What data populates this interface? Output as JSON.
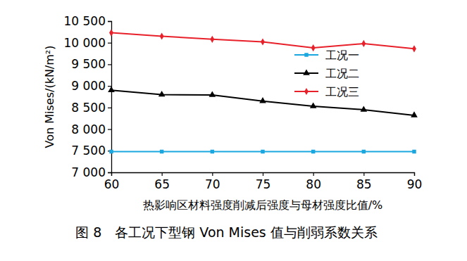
{
  "chart_data": {
    "type": "line",
    "title": "图 8　各工况下型钢 Von Mises 值与削弱系数关系",
    "x_label": "热影响区材料强度削减后强度与母材强度比值/%",
    "y_label": "Von Mises/(kN/m²)",
    "x": [
      60,
      65,
      70,
      75,
      80,
      85,
      90
    ],
    "xlim": [
      60,
      90
    ],
    "xticks": [
      60,
      65,
      70,
      75,
      80,
      85,
      90
    ],
    "ylim": [
      7000,
      10500
    ],
    "yticks": [
      {
        "value": 7000,
        "label": "7 000"
      },
      {
        "value": 7500,
        "label": "7 500"
      },
      {
        "value": 8000,
        "label": "8 000"
      },
      {
        "value": 8500,
        "label": "8 500"
      },
      {
        "value": 9000,
        "label": "9 000"
      },
      {
        "value": 9500,
        "label": "9 500"
      },
      {
        "value": 10000,
        "label": "10 000"
      },
      {
        "value": 10500,
        "label": "10 500"
      }
    ],
    "grid": false,
    "legend": "upper right",
    "series": [
      {
        "name": "工况一",
        "color": "#1aa7e0",
        "marker": "square",
        "line_style": "solid",
        "values": [
          7480,
          7480,
          7480,
          7480,
          7480,
          7480,
          7480
        ]
      },
      {
        "name": "工况二",
        "color": "#000000",
        "marker": "triangle",
        "line_style": "solid",
        "values": [
          8900,
          8800,
          8790,
          8650,
          8530,
          8450,
          8320
        ]
      },
      {
        "name": "工况三",
        "color": "#e8202a",
        "marker": "diamond",
        "line_style": "solid",
        "values": [
          10230,
          10150,
          10080,
          10020,
          9880,
          9980,
          9860
        ]
      }
    ]
  }
}
